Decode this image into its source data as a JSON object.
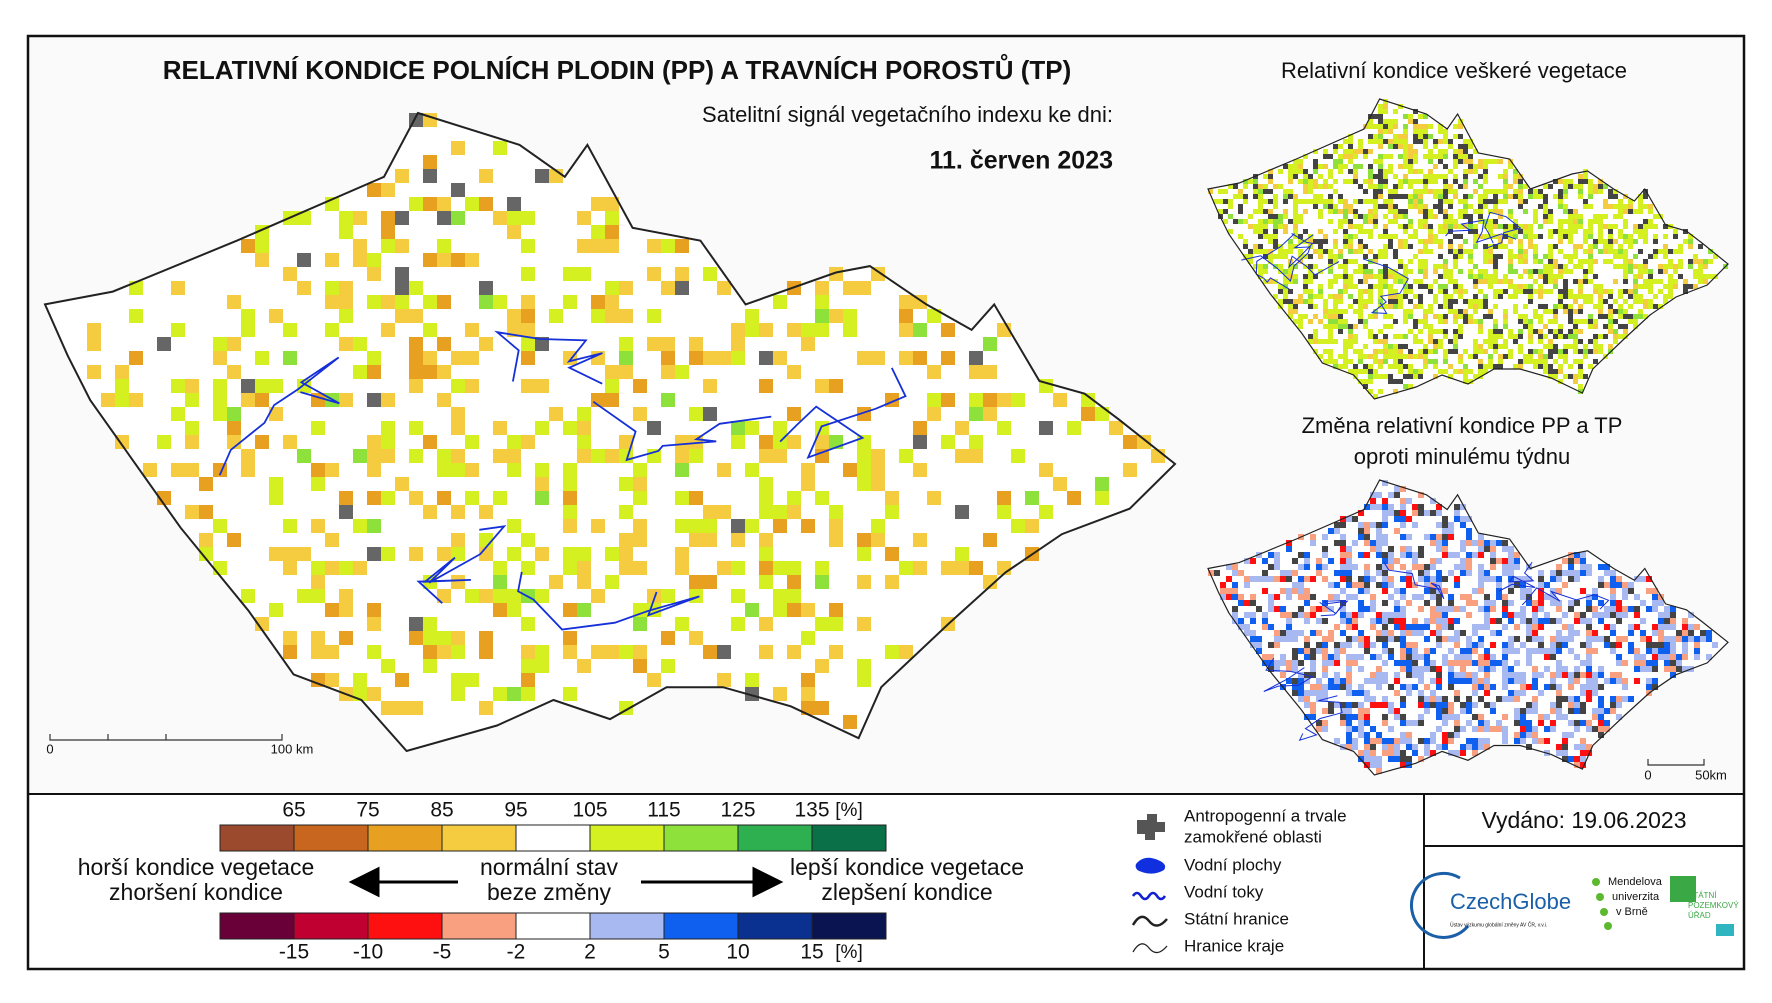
{
  "header": {
    "title": "RELATIVNÍ KONDICE POLNÍCH PLODIN (PP) A TRAVNÍCH POROSTŮ (TP)",
    "subtitle": "Satelitní signál vegetačního indexu ke dni:",
    "date": "11. červen 2023"
  },
  "main_map": {
    "scale_bar": {
      "start": "0",
      "end": "100 km"
    }
  },
  "inset_top": {
    "title": "Relativní kondice veškeré vegetace"
  },
  "inset_bottom": {
    "title_lines": [
      "Změna relativní kondice PP a TP",
      "oproti minulému týdnu"
    ],
    "scale_bar": {
      "start": "0",
      "end": "50km"
    }
  },
  "legend": {
    "condition": {
      "ticks": [
        65,
        75,
        85,
        95,
        105,
        115,
        125,
        135
      ],
      "unit": "[%]",
      "colors": [
        "#9c4a2e",
        "#c8661f",
        "#e8a020",
        "#f5cc40",
        "#ffffff",
        "#d4f020",
        "#8ee03a",
        "#2eb050",
        "#0a7048"
      ]
    },
    "change": {
      "ticks": [
        -15,
        -10,
        -5,
        -2,
        2,
        5,
        10,
        15
      ],
      "unit": "[%]",
      "colors": [
        "#6a0038",
        "#c00030",
        "#ff1010",
        "#f8a080",
        "#ffffff",
        "#a8b8f0",
        "#1060f0",
        "#0a3090",
        "#0a1450"
      ]
    },
    "worse": [
      "horší kondice vegetace",
      "zhoršení kondice"
    ],
    "normal": [
      "normální stav",
      "beze změny"
    ],
    "better": [
      "lepší kondice vegetace",
      "zlepšení kondice"
    ]
  },
  "map_legend": {
    "items": [
      {
        "lines": [
          "Antropogenní a trvale",
          "zamokřené oblasti"
        ]
      },
      {
        "lines": [
          "Vodní plochy"
        ]
      },
      {
        "lines": [
          "Vodní toky"
        ]
      },
      {
        "lines": [
          "Státní hranice"
        ]
      },
      {
        "lines": [
          "Hranice kraje"
        ]
      }
    ]
  },
  "issued": "Vydáno: 19.06.2023",
  "logos": {
    "czechglobe": "CzechGlobe",
    "czechglobe_sub": "Ústav výzkumu globální změny AV ČR, v.v.i.",
    "mendelu": [
      "Mendelova",
      "univerzita",
      "v Brně"
    ],
    "spu": [
      "STÁTNÍ",
      "POZEMKOVÝ",
      "ÚŘAD"
    ]
  }
}
